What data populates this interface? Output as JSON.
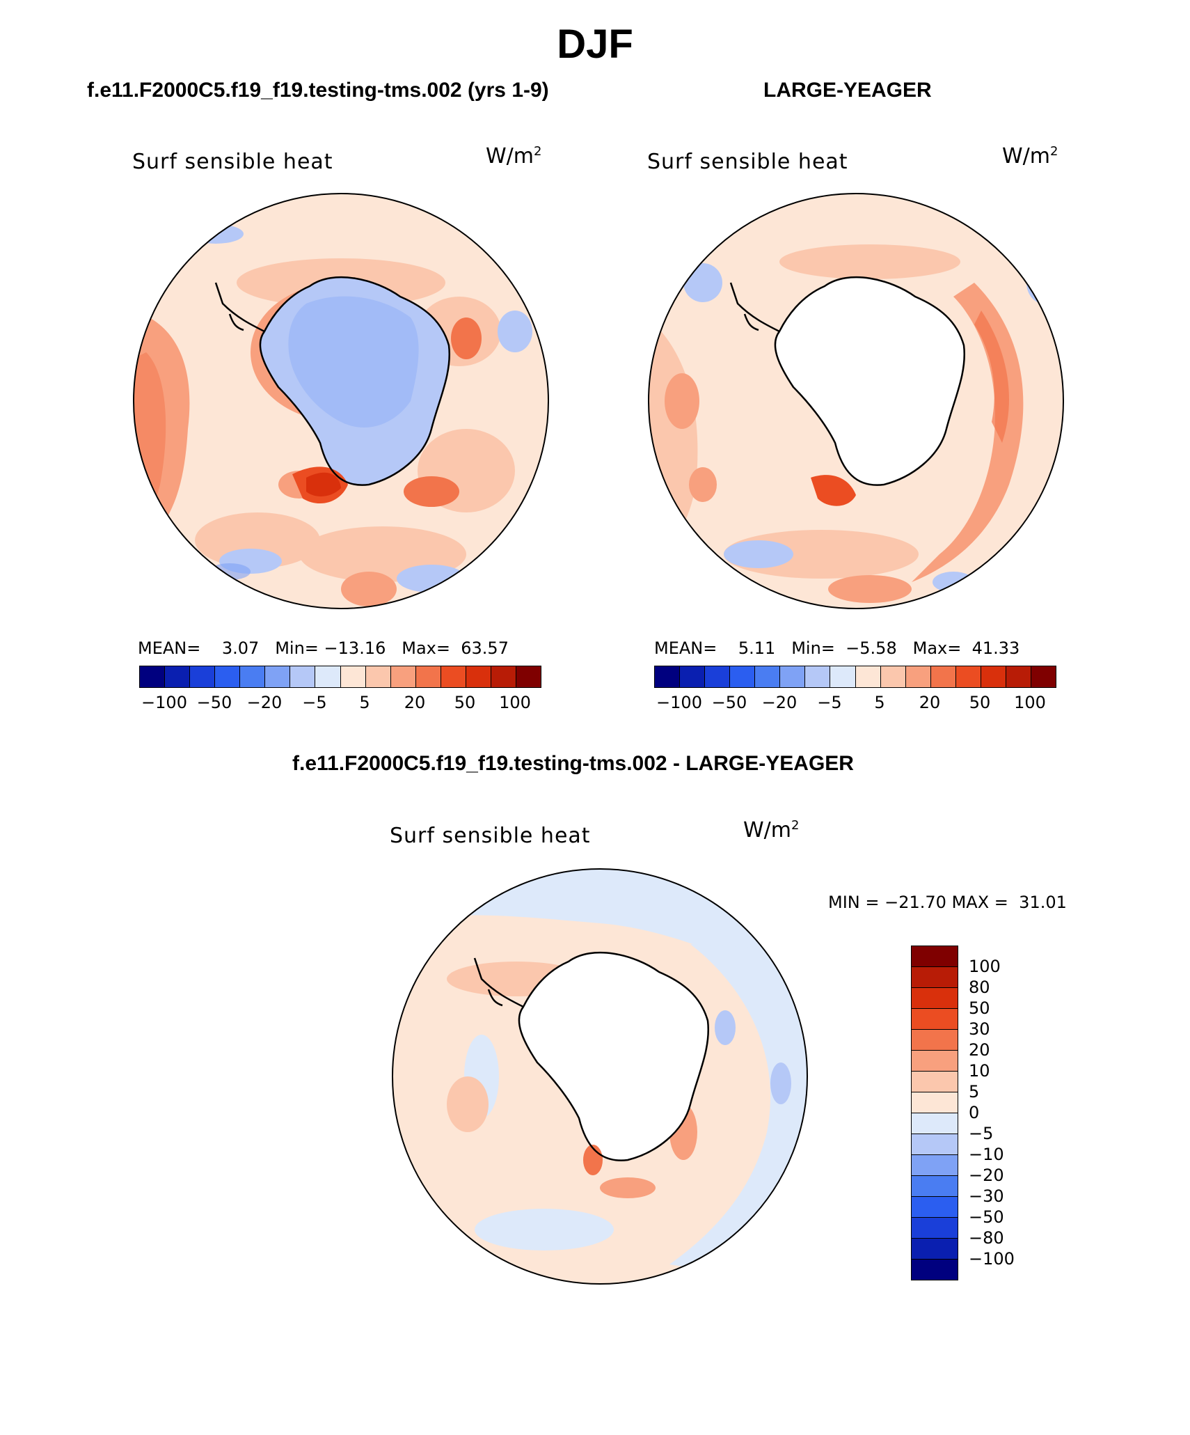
{
  "page_title": "DJF",
  "panels": [
    {
      "case": "f.e11.F2000C5.f19_f19.testing-tms.002 (yrs 1-9)",
      "variable": "Surf  sensible  heat",
      "units_base": "W/m",
      "units_exp": "2",
      "stats": {
        "mean_label": "MEAN=",
        "mean": "3.07",
        "min_label": "Min=",
        "min": "−13.16",
        "max_label": "Max=",
        "max": "63.57"
      },
      "colorbar_ticks": [
        "−100",
        "−50",
        "−20",
        "−5",
        "5",
        "20",
        "50",
        "100"
      ]
    },
    {
      "case": "LARGE-YEAGER",
      "variable": "Surf  sensible  heat",
      "units_base": "W/m",
      "units_exp": "2",
      "stats": {
        "mean_label": "MEAN=",
        "mean": "5.11",
        "min_label": "Min=",
        "min": "−5.58",
        "max_label": "Max=",
        "max": "41.33"
      },
      "colorbar_ticks": [
        "−100",
        "−50",
        "−20",
        "−5",
        "5",
        "20",
        "50",
        "100"
      ]
    },
    {
      "case": "f.e11.F2000C5.f19_f19.testing-tms.002 - LARGE-YEAGER",
      "variable": "Surf  sensible  heat",
      "units_base": "W/m",
      "units_exp": "2",
      "stats": {
        "min_label": "MIN =",
        "min": "−21.70",
        "max_label": "MAX =",
        "max": "31.01"
      },
      "colorbar_ticks": [
        "100",
        "80",
        "50",
        "30",
        "20",
        "10",
        "5",
        "0",
        "−5",
        "−10",
        "−20",
        "−30",
        "−50",
        "−80",
        "−100"
      ]
    }
  ],
  "colors": {
    "horizontal_scale": [
      "#00007f",
      "#0a1fb0",
      "#1a3fd9",
      "#2b5ef0",
      "#4a7df2",
      "#7fa2f5",
      "#b5c8f7",
      "#dde9fa",
      "#fde6d6",
      "#fbc7ad",
      "#f8a07e",
      "#f2744b",
      "#eb4d22",
      "#d9300c",
      "#b81c06",
      "#7f0000"
    ],
    "vertical_scale": [
      "#7f0000",
      "#b81c06",
      "#d9300c",
      "#eb4d22",
      "#f2744b",
      "#f8a07e",
      "#fbc7ad",
      "#fde6d6",
      "#dde9fa",
      "#b5c8f7",
      "#7fa2f5",
      "#4a7df2",
      "#2b5ef0",
      "#1a3fd9",
      "#0a1fb0",
      "#00007f"
    ]
  }
}
